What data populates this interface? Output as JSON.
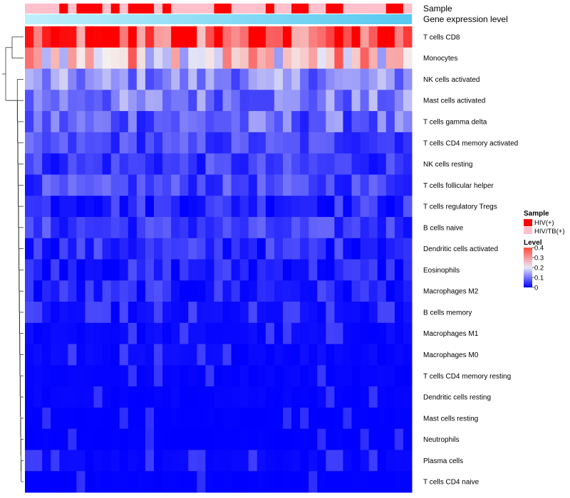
{
  "chart_data": {
    "type": "heatmap",
    "annotations": {
      "sample_label": "Sample",
      "expression_label": "Gene expression level"
    },
    "rows": [
      "T cells CD8",
      "Monocytes",
      "NK cells activated",
      "Mast cells activated",
      "T cells gamma delta",
      "T cells CD4 memory activated",
      "NK cells resting",
      "T cells follicular helper",
      "T cells regulatory  Tregs",
      "B cells naive",
      "Dendritic cells activated",
      "Eosinophils",
      "Macrophages M2",
      "B cells memory",
      "Macrophages M1",
      "Macrophages M0",
      "T cells CD4 memory resting",
      "Dendritic cells resting",
      "Mast cells resting",
      "Neutrophils",
      "Plasma cells",
      "T cells CD4 naive"
    ],
    "sample_groups": [
      "HIV(+)",
      "HIV/TB(+)"
    ],
    "column_samples": [
      1,
      1,
      1,
      1,
      0,
      1,
      0,
      0,
      0,
      1,
      0,
      1,
      0,
      0,
      0,
      1,
      0,
      1,
      1,
      1,
      1,
      1,
      0,
      0,
      1,
      1,
      1,
      1,
      0,
      1,
      1,
      0,
      0,
      1,
      1,
      0,
      0,
      1,
      1,
      1,
      1,
      1,
      0,
      0,
      1
    ],
    "row_levels": [
      0.33,
      0.21,
      0.11,
      0.1,
      0.08,
      0.06,
      0.05,
      0.06,
      0.04,
      0.05,
      0.04,
      0.03,
      0.03,
      0.02,
      0.015,
      0.015,
      0.008,
      0.008,
      0.002,
      0.002,
      0.012,
      0.002
    ],
    "legend": {
      "sample_title": "Sample",
      "level_title": "Level",
      "level_ticks": [
        "0.4",
        "0.3",
        "0.2",
        "0.1",
        "0"
      ],
      "level_range": [
        0,
        0.4
      ]
    },
    "colors": {
      "low": "#0000ff",
      "mid": "#f5f5f5",
      "high": "#ff0000",
      "HIV(+)": "#ff0000",
      "HIV/TB(+)": "#ffc0cb",
      "expression_start": "#bff0fb",
      "expression_end": "#56c8f0"
    }
  }
}
